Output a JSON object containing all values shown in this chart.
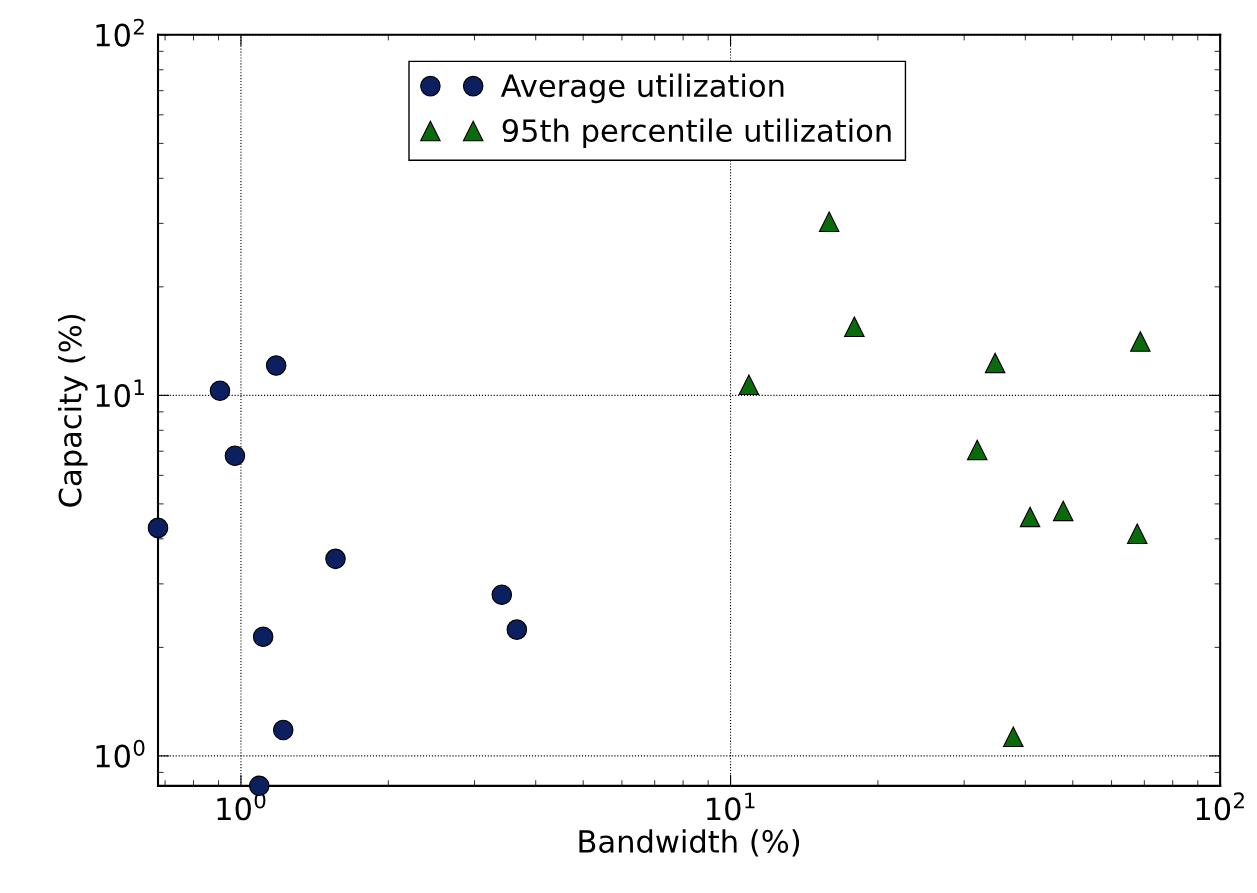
{
  "chart_data": {
    "type": "scatter",
    "xlabel": "Bandwidth (%)",
    "ylabel": "Capacity (%)",
    "log": "xy",
    "grid": true,
    "legend": "top",
    "xlim": [
      0.677,
      100
    ],
    "ylim": [
      0.826,
      100
    ],
    "xticks": [
      {
        "value": 1,
        "label": "10$^{0}$"
      },
      {
        "value": 10,
        "label": "10$^{1}$"
      },
      {
        "value": 100,
        "label": "10$^{2}$"
      }
    ],
    "yticks": [
      {
        "value": 1,
        "label": "10$^{0}$"
      },
      {
        "value": 10,
        "label": "10$^{1}$"
      },
      {
        "value": 100,
        "label": "10$^{2}$"
      }
    ],
    "series": [
      {
        "name": "Average utilization",
        "color": "#0c1f5e",
        "marker": "circle",
        "x": [
          0.677,
          0.906,
          0.972,
          1.18,
          1.11,
          1.22,
          1.09,
          1.56,
          3.41,
          3.66
        ],
        "values": [
          4.29,
          10.3,
          6.8,
          12.1,
          2.14,
          1.18,
          0.826,
          3.52,
          2.8,
          2.24
        ]
      },
      {
        "name": "95th percentile utilization",
        "color": "#0a6b0a",
        "marker": "triangle",
        "x": [
          10.9,
          15.9,
          17.9,
          34.7,
          31.9,
          40.9,
          47.8,
          67.7,
          68.7,
          37.8
        ],
        "values": [
          10.7,
          30.3,
          15.5,
          12.3,
          7.06,
          4.6,
          4.78,
          4.13,
          14.1,
          1.13
        ]
      }
    ]
  }
}
